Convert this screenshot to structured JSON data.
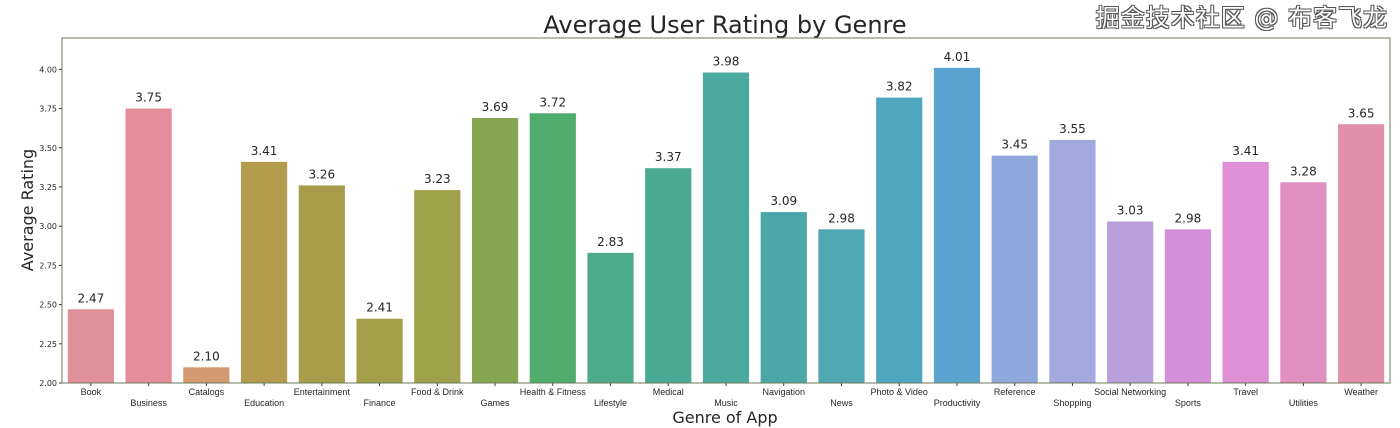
{
  "chart_data": {
    "type": "bar",
    "title": "Average User Rating by Genre",
    "xlabel": "Genre of App",
    "ylabel": "Average Rating",
    "ylim": [
      2.0,
      4.2
    ],
    "yticks": [
      "2.00",
      "2.25",
      "2.50",
      "2.75",
      "3.00",
      "3.25",
      "3.50",
      "3.75",
      "4.00"
    ],
    "grid": false,
    "categories": [
      "Book",
      "Business",
      "Catalogs",
      "Education",
      "Entertainment",
      "Finance",
      "Food & Drink",
      "Games",
      "Health & Fitness",
      "Lifestyle",
      "Medical",
      "Music",
      "Navigation",
      "News",
      "Photo & Video",
      "Productivity",
      "Reference",
      "Shopping",
      "Social Networking",
      "Sports",
      "Travel",
      "Utilities",
      "Weather"
    ],
    "values": [
      2.47,
      3.75,
      2.1,
      3.41,
      3.26,
      2.41,
      3.23,
      3.69,
      3.72,
      2.83,
      3.37,
      3.98,
      3.09,
      2.98,
      3.82,
      4.01,
      3.45,
      3.55,
      3.03,
      2.98,
      3.41,
      3.28,
      3.65
    ],
    "data_labels": [
      "2.47",
      "3.75",
      "2.10",
      "3.41",
      "3.26",
      "2.41",
      "3.23",
      "3.69",
      "3.72",
      "2.83",
      "3.37",
      "3.98",
      "3.09",
      "2.98",
      "3.82",
      "4.01",
      "3.45",
      "3.55",
      "3.03",
      "2.98",
      "3.41",
      "3.28",
      "3.65"
    ],
    "colors": [
      "#e0909a",
      "#e38d9a",
      "#d39a72",
      "#b39c4e",
      "#a89d4b",
      "#a4a04a",
      "#9fa24a",
      "#86a550",
      "#4fac6d",
      "#4bab8a",
      "#4aa994",
      "#4ba99f",
      "#4ca8a8",
      "#4ea7b2",
      "#4fa6bf",
      "#5aa3d0",
      "#8ea7dc",
      "#a3a8de",
      "#b9a0dc",
      "#d38fd9",
      "#df8fd6",
      "#e08fc0",
      "#e28fab"
    ]
  },
  "watermark": "掘金技术社区 @ 布客飞龙"
}
